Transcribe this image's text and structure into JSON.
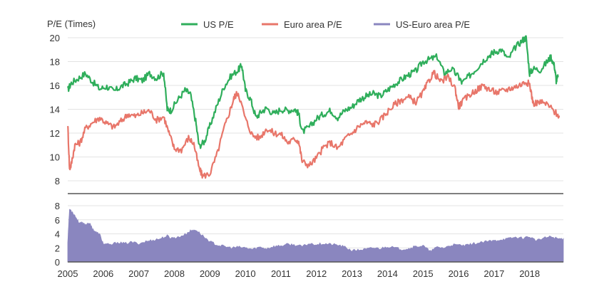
{
  "chart_data": [
    {
      "type": "line",
      "ylabel": "P/E (Times)",
      "ylim": [
        8,
        20
      ],
      "yticks": [
        8,
        10,
        12,
        14,
        16,
        18,
        20
      ],
      "xlim": [
        2005,
        2018.95
      ],
      "grid": "horizontal",
      "legend_position": "top",
      "series": [
        {
          "name": "US P/E",
          "color": "#2fae5b",
          "x": [
            2005.0,
            2005.1,
            2005.3,
            2005.5,
            2005.7,
            2005.9,
            2006.1,
            2006.3,
            2006.5,
            2006.7,
            2006.9,
            2007.1,
            2007.3,
            2007.5,
            2007.7,
            2007.8,
            2007.9,
            2008.1,
            2008.3,
            2008.45,
            2008.6,
            2008.7,
            2008.85,
            2009.0,
            2009.2,
            2009.4,
            2009.6,
            2009.8,
            2009.9,
            2010.0,
            2010.15,
            2010.3,
            2010.45,
            2010.6,
            2010.8,
            2011.0,
            2011.2,
            2011.4,
            2011.5,
            2011.6,
            2011.8,
            2012.0,
            2012.2,
            2012.4,
            2012.6,
            2012.8,
            2013.0,
            2013.2,
            2013.4,
            2013.6,
            2013.8,
            2014.0,
            2014.2,
            2014.4,
            2014.6,
            2014.8,
            2015.0,
            2015.2,
            2015.4,
            2015.6,
            2015.8,
            2016.0,
            2016.1,
            2016.3,
            2016.5,
            2016.7,
            2016.9,
            2017.0,
            2017.2,
            2017.4,
            2017.6,
            2017.8,
            2017.9,
            2018.0,
            2018.1,
            2018.3,
            2018.5,
            2018.6,
            2018.7,
            2018.75,
            2018.8
          ],
          "values": [
            15.6,
            16.2,
            16.6,
            17.0,
            16.3,
            15.7,
            15.9,
            15.5,
            15.9,
            16.2,
            16.6,
            16.4,
            17.0,
            16.6,
            17.1,
            14.0,
            13.9,
            14.8,
            15.6,
            15.3,
            13.0,
            10.9,
            11.3,
            12.6,
            14.3,
            15.9,
            16.8,
            17.3,
            17.7,
            15.6,
            14.8,
            13.3,
            13.8,
            14.1,
            13.6,
            14.0,
            13.9,
            14.0,
            13.6,
            12.1,
            12.5,
            13.2,
            13.6,
            13.9,
            13.3,
            13.9,
            14.2,
            14.8,
            15.1,
            15.3,
            15.1,
            15.6,
            16.1,
            16.5,
            16.9,
            17.2,
            18.0,
            18.2,
            18.4,
            17.0,
            17.4,
            16.7,
            16.2,
            16.8,
            17.4,
            18.1,
            18.6,
            18.8,
            19.0,
            18.2,
            19.2,
            19.8,
            20.0,
            17.0,
            17.4,
            17.3,
            18.0,
            18.4,
            17.6,
            16.4,
            16.7
          ]
        },
        {
          "name": "Euro area P/E",
          "color": "#e8766a",
          "x": [
            2005.0,
            2005.05,
            2005.1,
            2005.2,
            2005.35,
            2005.5,
            2005.7,
            2005.9,
            2006.1,
            2006.3,
            2006.5,
            2006.7,
            2006.9,
            2007.1,
            2007.3,
            2007.5,
            2007.7,
            2007.85,
            2008.0,
            2008.2,
            2008.4,
            2008.55,
            2008.7,
            2008.8,
            2009.0,
            2009.2,
            2009.4,
            2009.6,
            2009.7,
            2009.8,
            2010.0,
            2010.2,
            2010.4,
            2010.6,
            2010.8,
            2011.0,
            2011.2,
            2011.4,
            2011.5,
            2011.6,
            2011.8,
            2012.0,
            2012.2,
            2012.4,
            2012.6,
            2012.8,
            2013.0,
            2013.2,
            2013.4,
            2013.6,
            2013.8,
            2014.0,
            2014.2,
            2014.4,
            2014.6,
            2014.8,
            2015.0,
            2015.15,
            2015.3,
            2015.5,
            2015.7,
            2015.9,
            2016.0,
            2016.1,
            2016.3,
            2016.5,
            2016.7,
            2016.9,
            2017.1,
            2017.3,
            2017.5,
            2017.7,
            2017.9,
            2018.0,
            2018.1,
            2018.3,
            2018.5,
            2018.7,
            2018.85
          ],
          "values": [
            12.8,
            9.0,
            9.4,
            11.0,
            11.2,
            12.4,
            12.9,
            13.3,
            12.8,
            12.5,
            13.0,
            13.6,
            13.4,
            13.7,
            13.9,
            13.1,
            13.4,
            12.0,
            10.7,
            10.6,
            11.6,
            11.1,
            9.0,
            8.4,
            8.6,
            10.2,
            12.4,
            14.2,
            15.1,
            15.4,
            13.2,
            11.8,
            11.6,
            12.4,
            12.0,
            11.9,
            11.2,
            11.5,
            11.3,
            9.6,
            9.3,
            9.9,
            10.8,
            11.2,
            10.7,
            11.5,
            12.0,
            12.6,
            12.9,
            12.7,
            13.1,
            13.8,
            14.4,
            14.8,
            15.0,
            14.6,
            15.4,
            16.3,
            17.1,
            16.3,
            16.7,
            15.8,
            14.2,
            14.6,
            15.2,
            15.6,
            16.0,
            15.6,
            15.4,
            15.6,
            15.8,
            16.0,
            16.3,
            16.1,
            14.5,
            14.6,
            14.4,
            13.8,
            13.4
          ]
        }
      ]
    },
    {
      "type": "area",
      "ylim": [
        0,
        8
      ],
      "yticks": [
        0,
        2,
        4,
        6,
        8
      ],
      "xlim": [
        2005,
        2018.95
      ],
      "xticks": [
        2005,
        2006,
        2007,
        2008,
        2009,
        2010,
        2011,
        2012,
        2013,
        2014,
        2015,
        2016,
        2017,
        2018
      ],
      "xticklabels": [
        "2005",
        "2006",
        "2007",
        "2008",
        "2009",
        "2010",
        "2011",
        "2012",
        "2013",
        "2014",
        "2015",
        "2016",
        "2017",
        "2018"
      ],
      "grid": "horizontal",
      "series": [
        {
          "name": "US-Euro area P/E",
          "color": "#8a86bf",
          "x": [
            2005.0,
            2005.05,
            2005.1,
            2005.2,
            2005.3,
            2005.4,
            2005.5,
            2005.6,
            2005.7,
            2005.8,
            2005.9,
            2006.0,
            2006.2,
            2006.4,
            2006.6,
            2006.8,
            2007.0,
            2007.2,
            2007.4,
            2007.6,
            2007.8,
            2007.9,
            2008.1,
            2008.3,
            2008.45,
            2008.6,
            2008.8,
            2009.0,
            2009.2,
            2009.4,
            2009.6,
            2009.8,
            2010.0,
            2010.2,
            2010.4,
            2010.6,
            2010.8,
            2011.0,
            2011.2,
            2011.4,
            2011.6,
            2011.8,
            2012.0,
            2012.2,
            2012.4,
            2012.6,
            2012.8,
            2013.0,
            2013.2,
            2013.4,
            2013.6,
            2013.8,
            2014.0,
            2014.2,
            2014.4,
            2014.6,
            2014.8,
            2015.0,
            2015.2,
            2015.4,
            2015.6,
            2015.8,
            2016.0,
            2016.2,
            2016.4,
            2016.6,
            2016.8,
            2017.0,
            2017.2,
            2017.4,
            2017.6,
            2017.8,
            2018.0,
            2018.2,
            2018.4,
            2018.6,
            2018.8,
            2018.95
          ],
          "values": [
            2.8,
            7.5,
            7.3,
            6.6,
            5.7,
            5.5,
            5.3,
            5.6,
            4.7,
            4.2,
            3.9,
            2.6,
            2.4,
            2.8,
            2.6,
            2.8,
            2.6,
            2.9,
            3.1,
            3.3,
            3.7,
            3.4,
            3.5,
            3.9,
            4.4,
            4.6,
            3.7,
            2.9,
            2.4,
            2.2,
            2.0,
            2.1,
            2.0,
            1.8,
            2.1,
            1.9,
            2.2,
            2.3,
            2.5,
            2.4,
            2.2,
            2.6,
            2.5,
            2.6,
            2.5,
            2.4,
            2.1,
            1.6,
            1.7,
            1.8,
            2.0,
            1.9,
            2.2,
            2.0,
            1.8,
            1.9,
            2.2,
            2.3,
            1.5,
            2.1,
            2.0,
            2.4,
            2.4,
            2.3,
            2.6,
            2.7,
            2.9,
            3.0,
            3.2,
            3.3,
            3.5,
            3.4,
            3.6,
            3.0,
            3.4,
            3.6,
            3.3,
            3.3
          ]
        }
      ]
    }
  ]
}
